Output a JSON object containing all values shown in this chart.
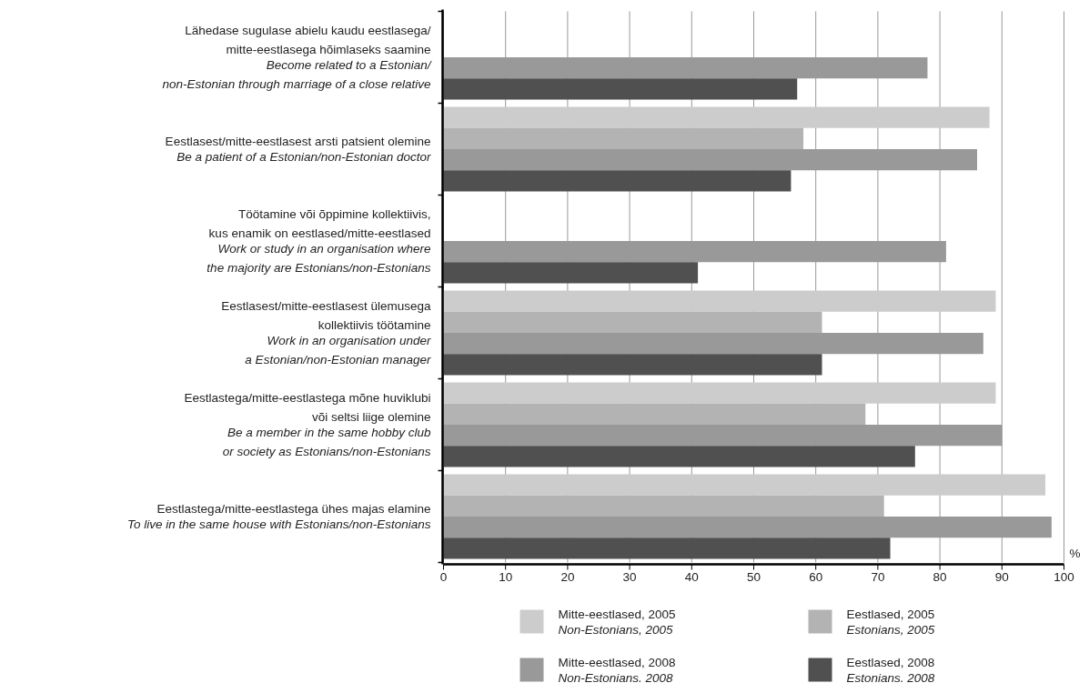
{
  "chart_data": {
    "type": "bar",
    "orientation": "horizontal",
    "xlabel": "%",
    "categories": [
      "Lähedase sugulase abielu kaudu eestlasega/\nmitte-eestlasega hõimlaseks saamine\nBecome related to a Estonian/\nnon-Estonian through marriage of a close relative",
      "Eestlasest/mitte-eestlasest arsti patsient olemine\nBe a patient of a Estonian/non-Estonian doctor",
      "Töötamine või õppimine kollektiivis,\nkus enamik on eestlased/mitte-eestlased\nWork or study in an organisation where\nthe majority are Estonians/non-Estonians",
      "Eestlasest/mitte-eestlasest ülemusega\nkollektiivis töötamine\nWork in an organisation under\na Estonian/non-Estonian manager",
      "Eestlastega/mitte-eestlastega mõne huviklubi\nvõi seltsi liige olemine\nBe a member in the same hobby club\nor society as Estonians/non-Estonians",
      "Eestlastega/mitte-eestlastega ühes majas elamine\nTo live in the same house with Estonians/non-Estonians"
    ],
    "series": [
      {
        "name": "Mitte-eestlased, 2005\nNon-Estonians, 2005",
        "color": "#cccccc",
        "values": [
          null,
          88,
          null,
          89,
          89,
          97
        ]
      },
      {
        "name": "Eestlased, 2005\nEstonians, 2005",
        "color": "#b3b3b3",
        "values": [
          null,
          58,
          null,
          61,
          68,
          71
        ]
      },
      {
        "name": "Mitte-eestlased, 2008\nNon-Estonians. 2008",
        "color": "#999999",
        "values": [
          78,
          86,
          81,
          87,
          90,
          98
        ]
      },
      {
        "name": "Eestlased, 2008\nEstonians. 2008",
        "color": "#505050",
        "values": [
          57,
          56,
          41,
          61,
          76,
          72
        ]
      }
    ],
    "xlim": [
      0,
      100
    ],
    "xticks": [
      0,
      10,
      20,
      30,
      40,
      50,
      60,
      70,
      80,
      90,
      100
    ],
    "grid": "x",
    "legend": "bottom"
  }
}
